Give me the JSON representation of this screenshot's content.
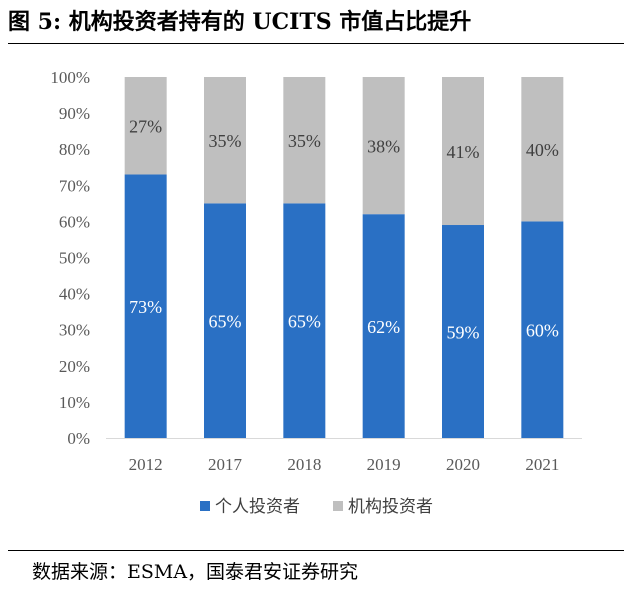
{
  "figure": {
    "title": "图 5: 机构投资者持有的 UCITS 市值占比提升",
    "source": "数据来源：ESMA，国泰君安证券研究"
  },
  "chart_data": {
    "type": "bar",
    "stacked": true,
    "categories": [
      "2012",
      "2017",
      "2018",
      "2019",
      "2020",
      "2021"
    ],
    "series": [
      {
        "name": "个人投资者",
        "values": [
          73,
          65,
          65,
          62,
          59,
          60
        ],
        "labels": [
          "73%",
          "65%",
          "65%",
          "62%",
          "59%",
          "60%"
        ],
        "color": "#2a70c4",
        "label_color": "#ffffff"
      },
      {
        "name": "机构投资者",
        "values": [
          27,
          35,
          35,
          38,
          41,
          40
        ],
        "labels": [
          "27%",
          "35%",
          "35%",
          "38%",
          "41%",
          "40%"
        ],
        "color": "#bfbfbf",
        "label_color": "#404040"
      }
    ],
    "ylim": [
      0,
      100
    ],
    "yticks": [
      "0%",
      "10%",
      "20%",
      "30%",
      "40%",
      "50%",
      "60%",
      "70%",
      "80%",
      "90%",
      "100%"
    ],
    "xlabel": "",
    "ylabel": "",
    "legend_position": "bottom",
    "grid": false
  }
}
